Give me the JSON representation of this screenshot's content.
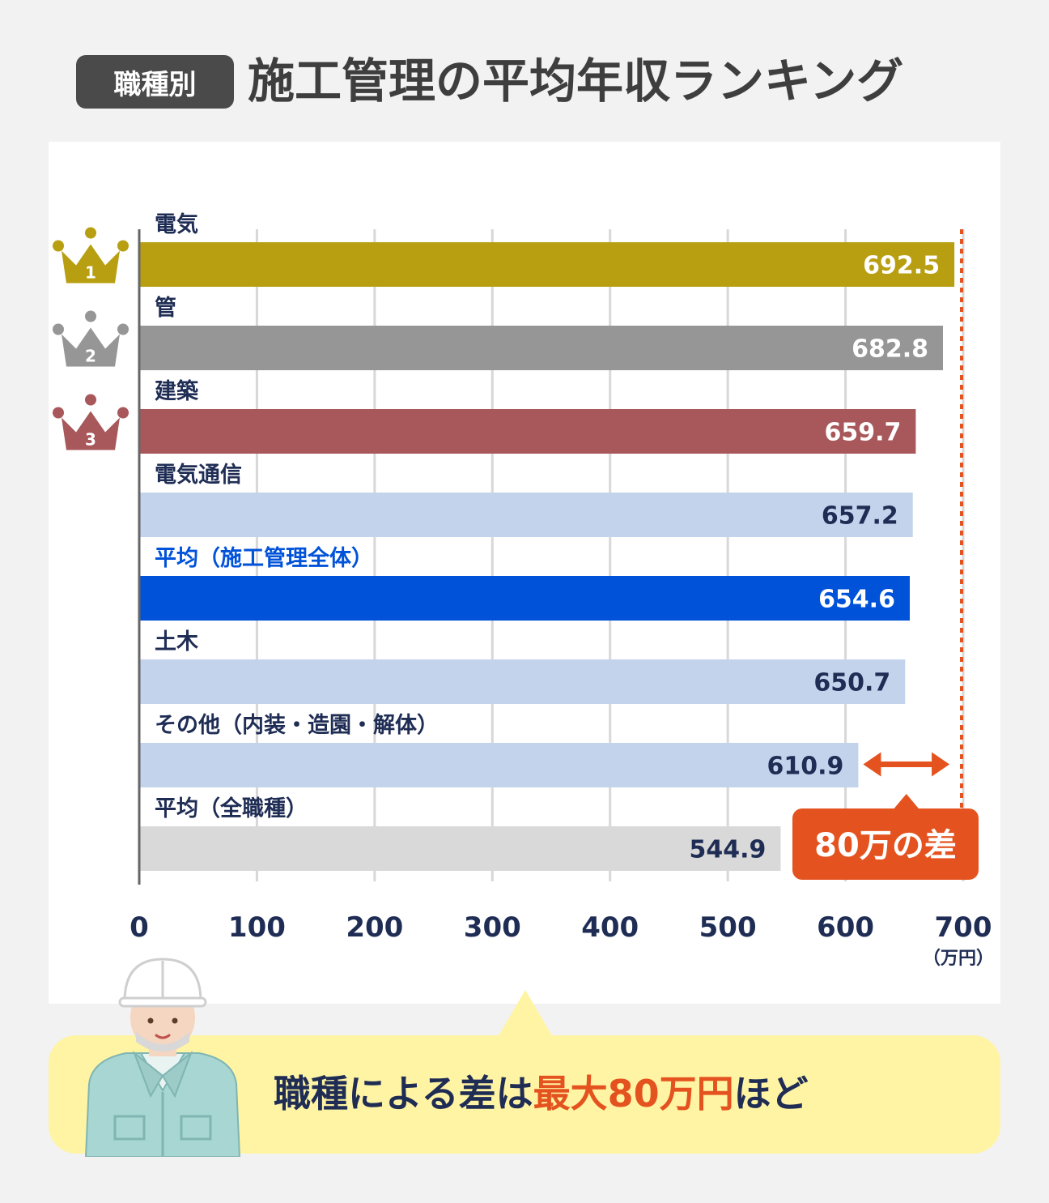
{
  "title": {
    "badge": "職種別",
    "main": "施工管理の平均年収ランキング"
  },
  "chart_data": {
    "type": "bar",
    "orientation": "horizontal",
    "categories": [
      "電気",
      "管",
      "建築",
      "電気通信",
      "平均（施工管理全体）",
      "土木",
      "その他（内装・造園・解体）",
      "平均（全職種）"
    ],
    "values": [
      692.5,
      682.8,
      659.7,
      657.2,
      654.6,
      650.7,
      610.9,
      544.9
    ],
    "value_labels": [
      "692.5",
      "682.8",
      "659.7",
      "657.2",
      "654.6",
      "650.7",
      "610.9",
      "544.9"
    ],
    "bar_colors": [
      "#b89f12",
      "#969696",
      "#a8575b",
      "#c3d3ec",
      "#0052d9",
      "#c3d3ec",
      "#c3d3ec",
      "#d9d9d9"
    ],
    "category_label_colors": [
      "#1f2d55",
      "#1f2d55",
      "#1f2d55",
      "#1f2d55",
      "#0052d9",
      "#1f2d55",
      "#1f2d55",
      "#1f2d55"
    ],
    "value_label_colors": [
      "#ffffff",
      "#ffffff",
      "#ffffff",
      "#1f2d55",
      "#ffffff",
      "#1f2d55",
      "#1f2d55",
      "#1f2d55"
    ],
    "ranks": [
      "1",
      "2",
      "3"
    ],
    "rank_colors": [
      "#b89f12",
      "#969696",
      "#a8575b"
    ],
    "xlim": [
      0,
      700
    ],
    "xticks": [
      0,
      100,
      200,
      300,
      400,
      500,
      600,
      700
    ],
    "x_unit": "（万円）",
    "grid": true,
    "reference_line": {
      "value": 700,
      "style": "dotted",
      "color": "#e4531f"
    },
    "annotation": {
      "text": "80万の差",
      "from": 610.9,
      "to": 692.5,
      "color": "#e4531f"
    }
  },
  "callout": {
    "text_before": "職種による差は",
    "text_emphasis": "最大80万円",
    "text_after": "ほど"
  },
  "colors": {
    "axis_text": "#1f2d55",
    "accent": "#e4531f",
    "callout_bg": "#fff4a3"
  }
}
